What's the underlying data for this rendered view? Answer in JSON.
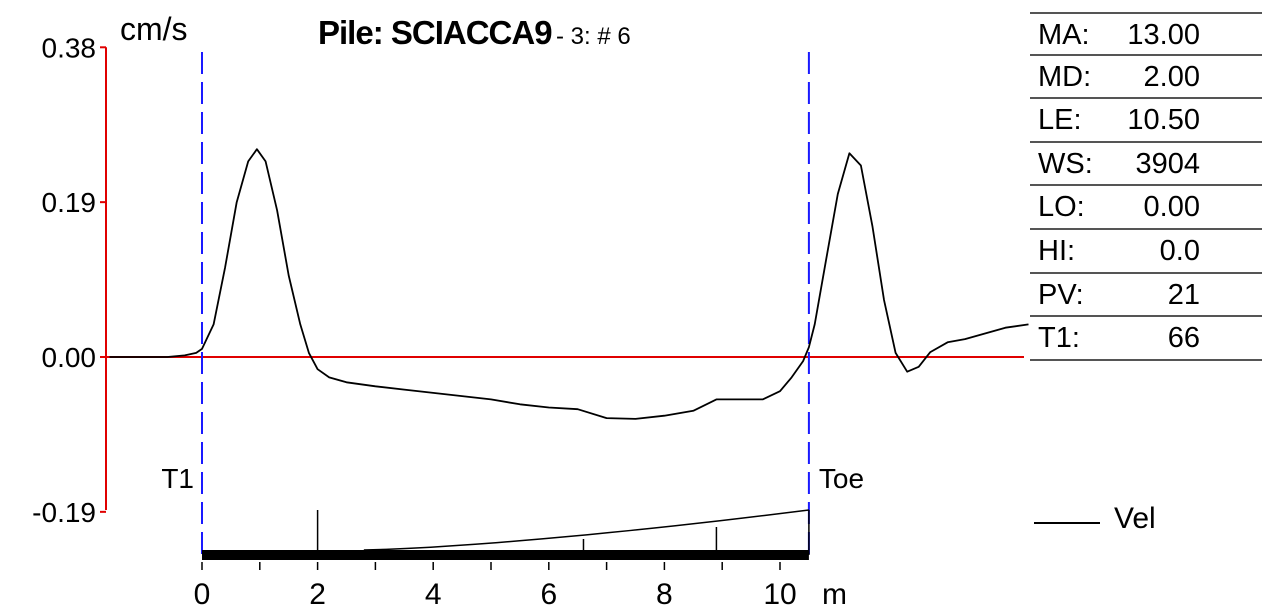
{
  "title": {
    "main": "Pile: SCIACCA9",
    "sub": "- 3: # 6"
  },
  "chart_data": {
    "type": "line",
    "y_unit": "cm/s",
    "x_unit": "m",
    "ylim": [
      -0.19,
      0.38
    ],
    "y_ticks": [
      "0.38",
      "0.19",
      "0.00",
      "-0.19"
    ],
    "x_ticks": [
      "0",
      "2",
      "4",
      "6",
      "8",
      "10"
    ],
    "xlim_drawn": [
      -1.6,
      14.3
    ],
    "markers": [
      {
        "label": "T1",
        "x": 0.0
      },
      {
        "label": "Toe",
        "x": 10.5
      }
    ],
    "series": [
      {
        "name": "Vel",
        "x": [
          -1.6,
          -0.6,
          -0.3,
          -0.1,
          0.0,
          0.2,
          0.4,
          0.6,
          0.8,
          0.95,
          1.1,
          1.3,
          1.5,
          1.7,
          1.85,
          2.0,
          2.2,
          2.5,
          3.0,
          3.5,
          4.0,
          4.5,
          5.0,
          5.5,
          6.0,
          6.5,
          7.0,
          7.5,
          8.0,
          8.5,
          8.9,
          9.3,
          9.7,
          10.0,
          10.2,
          10.4,
          10.5,
          10.6,
          10.8,
          11.0,
          11.2,
          11.4,
          11.6,
          11.8,
          12.0,
          12.2,
          12.4,
          12.6,
          12.9,
          13.2,
          13.5,
          13.9,
          14.3
        ],
        "values": [
          0.0,
          0.0,
          0.002,
          0.005,
          0.01,
          0.04,
          0.11,
          0.19,
          0.24,
          0.255,
          0.24,
          0.18,
          0.1,
          0.04,
          0.005,
          -0.015,
          -0.025,
          -0.031,
          -0.036,
          -0.04,
          -0.044,
          -0.048,
          -0.052,
          -0.058,
          -0.062,
          -0.064,
          -0.075,
          -0.076,
          -0.072,
          -0.066,
          -0.052,
          -0.052,
          -0.052,
          -0.042,
          -0.025,
          -0.005,
          0.012,
          0.04,
          0.12,
          0.2,
          0.25,
          0.235,
          0.16,
          0.07,
          0.005,
          -0.018,
          -0.012,
          0.006,
          0.018,
          0.022,
          0.028,
          0.036,
          0.04
        ]
      }
    ],
    "pile_profile_end": 10.5
  },
  "params": [
    {
      "key": "MA:",
      "value": "13.00"
    },
    {
      "key": "MD:",
      "value": "2.00"
    },
    {
      "key": "LE:",
      "value": "10.50"
    },
    {
      "key": "WS:",
      "value": "3904"
    },
    {
      "key": "LO:",
      "value": "0.00"
    },
    {
      "key": "HI:",
      "value": "0.0"
    },
    {
      "key": "PV:",
      "value": "21"
    },
    {
      "key": "T1:",
      "value": "66"
    }
  ],
  "legend": {
    "label": "Vel"
  },
  "colors": {
    "axis": "#e00000",
    "marker": "#1a1aff",
    "trace": "#000000"
  }
}
